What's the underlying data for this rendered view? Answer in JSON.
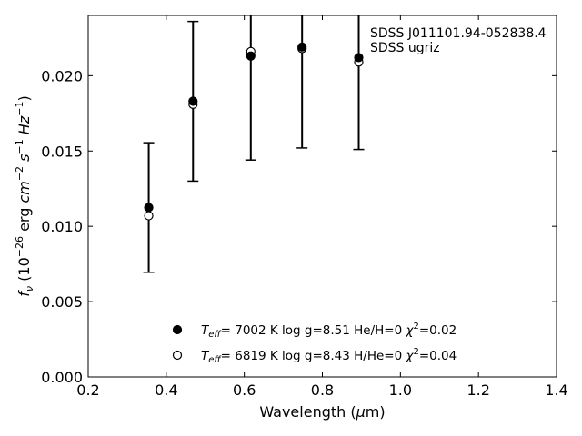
{
  "chart_data": {
    "type": "scatter",
    "annotation": [
      "SDSS J011101.94-052838.4",
      "SDSS ugriz"
    ],
    "xlabel_html": "Wavelength (<tspan font-style='italic'>μ</tspan>m)",
    "ylabel_html": "<tspan font-style='italic'>f</tspan><tspan font-style='italic' font-size='11' dy='4'>ν</tspan><tspan dy='-4'> (10</tspan><tspan font-size='11' dy='-7'>−26</tspan><tspan dy='7'> erg </tspan><tspan font-style='italic'>cm</tspan><tspan font-size='11' dy='-7'>−2</tspan><tspan dy='7'> </tspan><tspan font-style='italic'>s</tspan><tspan font-size='11' dy='-7'>−1</tspan><tspan dy='7'> </tspan><tspan font-style='italic'>Hz</tspan><tspan font-size='11' dy='-7'>−1</tspan><tspan dy='7'>)</tspan>",
    "xlim": [
      0.2,
      1.4
    ],
    "ylim": [
      0.0,
      0.024
    ],
    "xticks": [
      "0.2",
      "0.4",
      "0.6",
      "0.8",
      "1.0",
      "1.2",
      "1.4"
    ],
    "yticks": [
      "0.000",
      "0.005",
      "0.010",
      "0.015",
      "0.020"
    ],
    "observed": {
      "x": [
        0.3551,
        0.4686,
        0.6166,
        0.748,
        0.8932
      ],
      "y": [
        0.01125,
        0.0183,
        0.0213,
        0.0219,
        0.0211
      ],
      "err": [
        0.0043,
        0.0053,
        0.0069,
        0.0067,
        0.006
      ]
    },
    "series": [
      {
        "legend_html": "<tspan font-style='italic'>T</tspan><tspan font-style='italic' font-size='10' dy='3'>eff</tspan><tspan dy='-3'>=  7002 K  log g=8.51  He/H=0  </tspan><tspan font-style='italic'>χ</tspan><tspan font-size='10' dy='-6'>2</tspan><tspan dy='6'>=0.02</tspan>",
        "marker": "filled",
        "x": [
          0.3551,
          0.4686,
          0.6166,
          0.748,
          0.8932
        ],
        "y": [
          0.01125,
          0.0183,
          0.0213,
          0.0219,
          0.0212
        ]
      },
      {
        "legend_html": "<tspan font-style='italic'>T</tspan><tspan font-style='italic' font-size='10' dy='3'>eff</tspan><tspan dy='-3'>=  6819 K  log g=8.43  H/He=0  </tspan><tspan font-style='italic'>χ</tspan><tspan font-size='10' dy='-6'>2</tspan><tspan dy='6'>=0.04</tspan>",
        "marker": "open",
        "x": [
          0.3551,
          0.4686,
          0.6166,
          0.748,
          0.8932
        ],
        "y": [
          0.0107,
          0.0181,
          0.0216,
          0.0218,
          0.0209
        ]
      }
    ],
    "grid": false,
    "legend_position": "lower-center"
  }
}
